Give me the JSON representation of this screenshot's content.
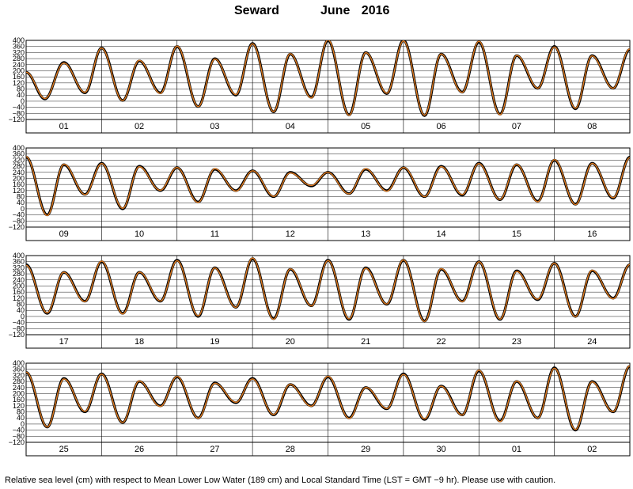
{
  "title": {
    "station": "Seward",
    "period": "June 2016"
  },
  "footnote": "Relative sea level (cm) with respect to Mean Lower Low Water (189 cm) and Local Standard Time (LST = GMT −9 hr). Please use with caution.",
  "colors": {
    "observed": "#000000",
    "predicted": "#e07a1f",
    "grid": "#000000"
  },
  "chart_data": {
    "type": "line",
    "ylim": [
      -120,
      400
    ],
    "yticks": [
      -120,
      -80,
      -40,
      0,
      40,
      80,
      120,
      160,
      200,
      240,
      280,
      320,
      360,
      400
    ],
    "yticklabels": [
      "−120",
      "−80",
      "−40",
      "0",
      "40",
      "80",
      "120",
      "160",
      "200",
      "240",
      "280",
      "320",
      "360",
      "400"
    ],
    "panels": [
      {
        "day_labels": [
          "01",
          "02",
          "03",
          "04",
          "05",
          "06",
          "07",
          "08"
        ]
      },
      {
        "day_labels": [
          "09",
          "10",
          "11",
          "12",
          "13",
          "14",
          "15",
          "16"
        ]
      },
      {
        "day_labels": [
          "17",
          "18",
          "19",
          "20",
          "21",
          "22",
          "23",
          "24"
        ]
      },
      {
        "day_labels": [
          "25",
          "26",
          "27",
          "28",
          "29",
          "30",
          "01",
          "02"
        ]
      }
    ],
    "series": [
      {
        "name": "",
        "color": "#000000"
      },
      {
        "name": "",
        "color": "#e07a1f"
      }
    ],
    "tide_extrema": [
      [
        0.0,
        190
      ],
      [
        0.25,
        15
      ],
      [
        0.5,
        255
      ],
      [
        0.78,
        55
      ],
      [
        1.0,
        350
      ],
      [
        1.28,
        5
      ],
      [
        1.5,
        265
      ],
      [
        1.78,
        55
      ],
      [
        2.0,
        360
      ],
      [
        2.28,
        -35
      ],
      [
        2.5,
        280
      ],
      [
        2.78,
        40
      ],
      [
        3.0,
        380
      ],
      [
        3.28,
        -70
      ],
      [
        3.5,
        310
      ],
      [
        3.78,
        25
      ],
      [
        4.0,
        400
      ],
      [
        4.28,
        -90
      ],
      [
        4.5,
        320
      ],
      [
        4.78,
        50
      ],
      [
        5.0,
        400
      ],
      [
        5.28,
        -95
      ],
      [
        5.5,
        310
      ],
      [
        5.78,
        60
      ],
      [
        6.0,
        390
      ],
      [
        6.28,
        -85
      ],
      [
        6.5,
        300
      ],
      [
        6.78,
        85
      ],
      [
        7.0,
        360
      ],
      [
        7.28,
        -50
      ],
      [
        7.5,
        300
      ],
      [
        7.78,
        85
      ],
      [
        8.0,
        340
      ],
      [
        8.28,
        -40
      ],
      [
        8.5,
        290
      ],
      [
        8.78,
        95
      ],
      [
        9.0,
        300
      ],
      [
        9.28,
        0
      ],
      [
        9.5,
        280
      ],
      [
        9.78,
        120
      ],
      [
        10.0,
        270
      ],
      [
        10.28,
        45
      ],
      [
        10.5,
        260
      ],
      [
        10.78,
        120
      ],
      [
        11.0,
        250
      ],
      [
        11.28,
        80
      ],
      [
        11.5,
        240
      ],
      [
        11.78,
        150
      ],
      [
        12.0,
        240
      ],
      [
        12.28,
        100
      ],
      [
        12.5,
        260
      ],
      [
        12.78,
        120
      ],
      [
        13.0,
        270
      ],
      [
        13.28,
        80
      ],
      [
        13.5,
        280
      ],
      [
        13.78,
        90
      ],
      [
        14.0,
        300
      ],
      [
        14.28,
        60
      ],
      [
        14.5,
        290
      ],
      [
        14.78,
        50
      ],
      [
        15.0,
        320
      ],
      [
        15.28,
        30
      ],
      [
        15.5,
        300
      ],
      [
        15.78,
        70
      ],
      [
        16.0,
        340
      ],
      [
        16.28,
        20
      ],
      [
        16.5,
        290
      ],
      [
        16.78,
        100
      ],
      [
        17.0,
        360
      ],
      [
        17.28,
        20
      ],
      [
        17.5,
        290
      ],
      [
        17.78,
        100
      ],
      [
        18.0,
        370
      ],
      [
        18.28,
        0
      ],
      [
        18.5,
        320
      ],
      [
        18.78,
        60
      ],
      [
        19.0,
        380
      ],
      [
        19.28,
        -15
      ],
      [
        19.5,
        310
      ],
      [
        19.78,
        70
      ],
      [
        20.0,
        370
      ],
      [
        20.28,
        -20
      ],
      [
        20.5,
        320
      ],
      [
        20.78,
        80
      ],
      [
        21.0,
        370
      ],
      [
        21.28,
        -30
      ],
      [
        21.5,
        310
      ],
      [
        21.78,
        100
      ],
      [
        22.0,
        360
      ],
      [
        22.28,
        -20
      ],
      [
        22.5,
        300
      ],
      [
        22.78,
        110
      ],
      [
        23.0,
        350
      ],
      [
        23.28,
        0
      ],
      [
        23.5,
        300
      ],
      [
        23.78,
        120
      ],
      [
        24.0,
        340
      ],
      [
        24.28,
        -20
      ],
      [
        24.5,
        300
      ],
      [
        24.78,
        80
      ],
      [
        25.0,
        330
      ],
      [
        25.28,
        10
      ],
      [
        25.5,
        280
      ],
      [
        25.78,
        120
      ],
      [
        26.0,
        310
      ],
      [
        26.28,
        40
      ],
      [
        26.5,
        270
      ],
      [
        26.78,
        140
      ],
      [
        27.0,
        300
      ],
      [
        27.28,
        60
      ],
      [
        27.5,
        260
      ],
      [
        27.78,
        120
      ],
      [
        28.0,
        310
      ],
      [
        28.28,
        40
      ],
      [
        28.5,
        240
      ],
      [
        28.78,
        100
      ],
      [
        29.0,
        330
      ],
      [
        29.28,
        30
      ],
      [
        29.5,
        250
      ],
      [
        29.78,
        60
      ],
      [
        30.0,
        350
      ],
      [
        30.28,
        20
      ],
      [
        30.5,
        280
      ],
      [
        30.78,
        40
      ],
      [
        31.0,
        370
      ],
      [
        31.28,
        -40
      ],
      [
        31.5,
        280
      ],
      [
        31.78,
        80
      ],
      [
        32.0,
        380
      ]
    ]
  }
}
